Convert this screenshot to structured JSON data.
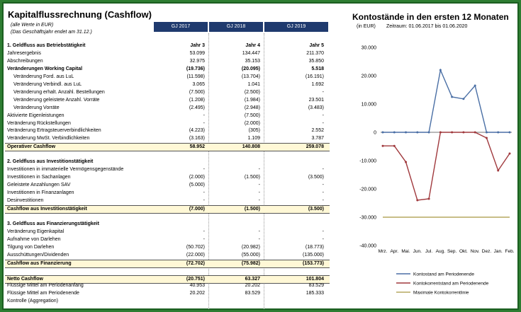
{
  "header": {
    "title": "Kapitalflussrechnung (Cashflow)",
    "note1": "(alle Werte in  EUR)",
    "note2": "(Das Geschäftsjahr endet am 31.12.)",
    "gj": [
      "GJ 2017",
      "GJ 2018",
      "GJ 2019"
    ]
  },
  "rows": [
    {
      "label": "1. Geldfluss aus Betriebstätigkeit",
      "v": [
        "Jahr 3",
        "Jahr 4",
        "Jahr 5"
      ],
      "type": "section"
    },
    {
      "label": "Jahresergebnis",
      "v": [
        "53.099",
        "134.447",
        "211.370"
      ]
    },
    {
      "label": "Abschreibungen",
      "v": [
        "32.975",
        "35.153",
        "35.850"
      ]
    },
    {
      "label": "Veränderungen Working Capital",
      "v": [
        "(19.736)",
        "(20.095)",
        "5.518"
      ],
      "type": "bold"
    },
    {
      "label": "   Veränderung Ford. aus LuL",
      "v": [
        "(11.598)",
        "(13.704)",
        "(16.191)"
      ]
    },
    {
      "label": "   Veränderung Verbindl. aus LuL",
      "v": [
        "3.065",
        "1.041",
        "1.692"
      ]
    },
    {
      "label": "   Veränderung erhalt. Anzahl. Bestellungen",
      "v": [
        "(7.500)",
        "(2.500)",
        "-"
      ]
    },
    {
      "label": "   Veränderung  geleistete Anzahl. Vorräte",
      "v": [
        "(1.208)",
        "(1.984)",
        "23.501"
      ]
    },
    {
      "label": "   Veränderung Vorräte",
      "v": [
        "(2.495)",
        "(2.948)",
        "(3.483)"
      ]
    },
    {
      "label": "Aktivierte Eigenleistungen",
      "v": [
        "-",
        "(7.500)",
        "-"
      ]
    },
    {
      "label": "Veränderung Rückstellungen",
      "v": [
        "-",
        "(2.000)",
        "-"
      ]
    },
    {
      "label": "Veränderung Ertragsteuerverbindlichkeiten",
      "v": [
        "(4.223)",
        "(305)",
        "2.552"
      ]
    },
    {
      "label": "Veränderung MwSt. Verbindlichkeiten",
      "v": [
        "(3.163)",
        "1.109",
        "3.787"
      ]
    },
    {
      "label": "Operativer Cashflow",
      "v": [
        "58.952",
        "140.808",
        "259.078"
      ],
      "type": "total"
    },
    {
      "label": "",
      "v": [
        "",
        "",
        ""
      ],
      "type": "blank"
    },
    {
      "label": "2. Geldfluss aus Investitionstätigkeit",
      "v": [
        "",
        "",
        ""
      ],
      "type": "section"
    },
    {
      "label": "Investitionen in immaterielle Vermögensgegenstände",
      "v": [
        "-",
        "-",
        "-"
      ]
    },
    {
      "label": "Investitionen in Sachanlagen",
      "v": [
        "(2.000)",
        "(1.500)",
        "(3.500)"
      ]
    },
    {
      "label": "Geleistete Anzahlungen SAV",
      "v": [
        "(5.000)",
        "-",
        "-"
      ]
    },
    {
      "label": "Investitionen in Finanzanlagen",
      "v": [
        "-",
        "-",
        "-"
      ]
    },
    {
      "label": "Desinvestitionen",
      "v": [
        "-",
        "-",
        "-"
      ]
    },
    {
      "label": "Cashflow aus Investitionstätigkeit",
      "v": [
        "(7.000)",
        "(1.500)",
        "(3.500)"
      ],
      "type": "total"
    },
    {
      "label": "",
      "v": [
        "",
        "",
        ""
      ],
      "type": "blank"
    },
    {
      "label": "3. Geldfluss aus Finanzierungstätigkeit",
      "v": [
        "",
        "",
        ""
      ],
      "type": "section"
    },
    {
      "label": "Veränderung Eigenkapital",
      "v": [
        "-",
        "-",
        "-"
      ]
    },
    {
      "label": "Aufnahme von Darlehen",
      "v": [
        "-",
        "-",
        "-"
      ]
    },
    {
      "label": "Tilgung von Darlehen",
      "v": [
        "(50.702)",
        "(20.982)",
        "(18.773)"
      ]
    },
    {
      "label": "Ausschüttungen/Dividenden",
      "v": [
        "(22.000)",
        "(55.000)",
        "(135.000)"
      ]
    },
    {
      "label": "Cashflow aus Finanzierung",
      "v": [
        "(72.702)",
        "(75.982)",
        "(153.773)"
      ],
      "type": "total"
    },
    {
      "label": "",
      "v": [
        "",
        "",
        ""
      ],
      "type": "blank"
    },
    {
      "label": "Netto Cashflow",
      "v": [
        "(20.751)",
        "63.327",
        "101.804"
      ],
      "type": "total"
    },
    {
      "label": "Flüssige Mittel am Periodenanfang",
      "v": [
        "40.953",
        "20.202",
        "83.529"
      ]
    },
    {
      "label": "Flüssige Mittel am Periodenende",
      "v": [
        "20.202",
        "83.529",
        "185.333"
      ]
    },
    {
      "label": "Kontrolle (Aggregation)",
      "v": [
        "",
        "",
        ""
      ]
    }
  ],
  "chart": {
    "title": "Kontostände in den ersten 12 Monaten",
    "unit": "(in EUR)",
    "range": "Zeitraum: 01.06.2017 bis 01.06.2020"
  },
  "chart_data": {
    "type": "line",
    "categories": [
      "Mrz.",
      "Apr.",
      "Mai.",
      "Jun.",
      "Jul.",
      "Aug.",
      "Sep.",
      "Okt.",
      "Nov.",
      "Dez.",
      "Jan.",
      "Feb."
    ],
    "ylim": [
      -40000,
      30000
    ],
    "yticks": [
      "30.000",
      "20.000",
      "10.000",
      "0",
      "-10.000",
      "-20.000",
      "-30.000",
      "-40.000"
    ],
    "series": [
      {
        "name": "Kontostand am Periodenende",
        "color": "#4a6fa5",
        "values": [
          0,
          0,
          0,
          0,
          0,
          22000,
          12500,
          11800,
          16500,
          0,
          0,
          0
        ]
      },
      {
        "name": "Kontokorrentstand am Periodenende",
        "color": "#a0393d",
        "values": [
          -4800,
          -4800,
          -10500,
          -24000,
          -23500,
          0,
          0,
          0,
          0,
          -2000,
          -13500,
          -7500
        ]
      },
      {
        "name": "Maximale Kontokorrentlinie",
        "color": "#b5a860",
        "values": [
          -30000,
          -30000,
          -30000,
          -30000,
          -30000,
          -30000,
          -30000,
          -30000,
          -30000,
          -30000,
          -30000,
          -30000
        ]
      }
    ]
  }
}
